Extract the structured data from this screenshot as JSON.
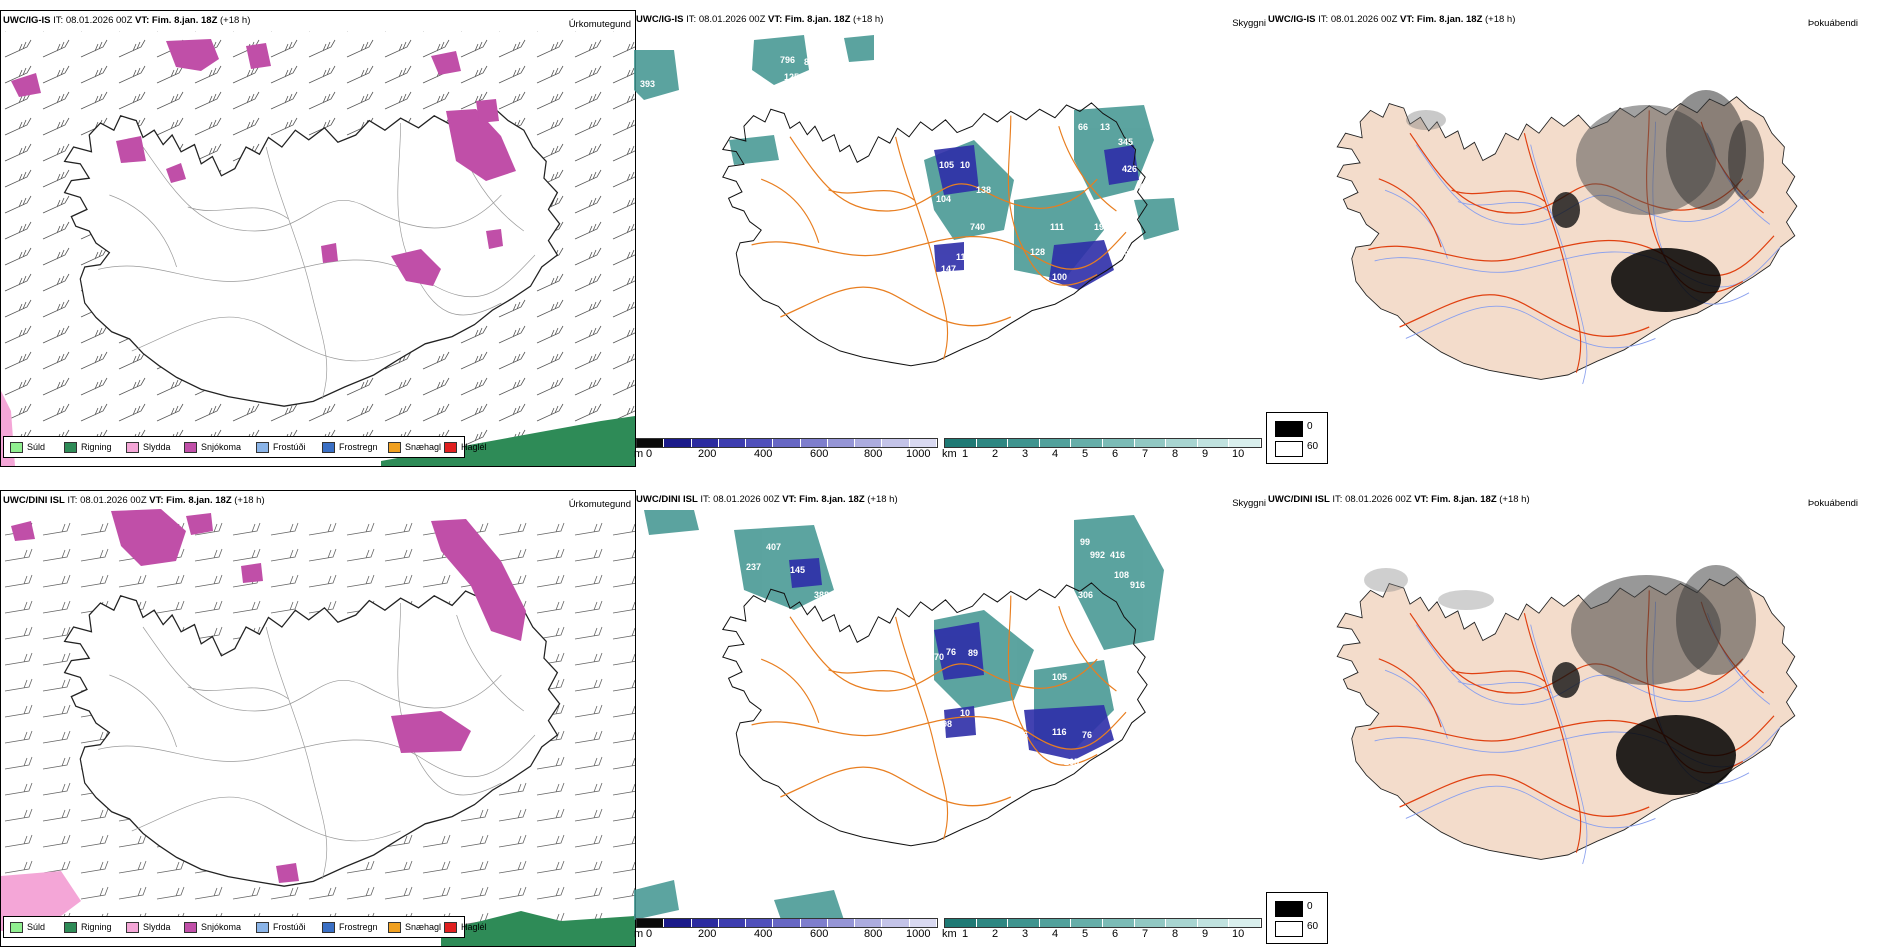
{
  "top_row": {
    "precip_type_panel": {
      "model": "UWC/IG-IS",
      "it_label": "IT:",
      "it_value": "08.01.2026 00Z",
      "vt_label": "VT:",
      "vt_value": "Fim. 8.jan. 18Z",
      "lead": "(+18 h)",
      "right_label": "Úrkomutegund"
    },
    "cloud_panel": {
      "model": "UWC/IG-IS",
      "it_label": "IT:",
      "it_value": "08.01.2026 00Z",
      "vt_label": "VT:",
      "vt_value": "Fim. 8.jan. 18Z",
      "lead": "(+18 h)",
      "right_label": "Skyggni",
      "labels": [
        "393",
        "796",
        "877",
        "125",
        "105",
        "10",
        "104",
        "138",
        "740",
        "11",
        "147",
        "148",
        "600",
        "128",
        "100",
        "176",
        "111",
        "66",
        "13",
        "345",
        "426",
        "18",
        "421",
        "190",
        "105",
        "80",
        "11"
      ]
    },
    "fog_panel": {
      "model": "UWC/IG-IS",
      "it_label": "IT:",
      "it_value": "08.01.2026 00Z",
      "vt_label": "VT:",
      "vt_value": "Fim. 8.jan. 18Z",
      "lead": "(+18 h)",
      "right_label": "Þokuábendi"
    }
  },
  "bottom_row": {
    "precip_type_panel": {
      "model": "UWC/DINI ISL",
      "it_label": "IT:",
      "it_value": "08.01.2026 00Z",
      "vt_label": "VT:",
      "vt_value": "Fim. 8.jan. 18Z",
      "lead": "(+18 h)",
      "right_label": "Úrkomutegund"
    },
    "cloud_panel": {
      "model": "UWC/DINI ISL",
      "it_label": "IT:",
      "it_value": "08.01.2026 00Z",
      "vt_label": "VT:",
      "vt_value": "Fim. 8.jan. 18Z",
      "lead": "(+18 h)",
      "right_label": "Skyggni",
      "labels": [
        "407",
        "237",
        "145",
        "388",
        "99",
        "992",
        "416",
        "108",
        "916",
        "306",
        "70",
        "76",
        "89",
        "42",
        "105",
        "98",
        "10",
        "96",
        "116",
        "76",
        "265"
      ]
    },
    "fog_panel": {
      "model": "UWC/DINI ISL",
      "it_label": "IT:",
      "it_value": "08.01.2026 00Z",
      "vt_label": "VT:",
      "vt_value": "Fim. 8.jan. 18Z",
      "lead": "(+18 h)",
      "right_label": "Þokuábendi"
    }
  },
  "precip_legend": [
    {
      "label": "Súld",
      "color": "#90ee90"
    },
    {
      "label": "Rigning",
      "color": "#2e8b57"
    },
    {
      "label": "Slydda",
      "color": "#f4a6d7"
    },
    {
      "label": "Snjókoma",
      "color": "#c04fa8"
    },
    {
      "label": "Frostúði",
      "color": "#8ab4e8"
    },
    {
      "label": "Frostregn",
      "color": "#3a6fc4"
    },
    {
      "label": "Snæhagl",
      "color": "#f0a020"
    },
    {
      "label": "Haglél",
      "color": "#e02020"
    }
  ],
  "cloud_base_bar": {
    "unit": "m",
    "ticks": [
      "0",
      "200",
      "400",
      "600",
      "800",
      "1000"
    ],
    "colors": [
      "#0a0a0a",
      "#1a1a8a",
      "#2b2ba0",
      "#3d3db0",
      "#5050bb",
      "#6767c4",
      "#7e7ecd",
      "#9595d6",
      "#acacdf",
      "#c3c3e8",
      "#d9d9f1"
    ]
  },
  "visibility_bar": {
    "unit": "km",
    "ticks": [
      "1",
      "2",
      "3",
      "4",
      "5",
      "6",
      "7",
      "8",
      "9",
      "10"
    ],
    "colors": [
      "#1f7a75",
      "#2e8782",
      "#3f948f",
      "#52a19c",
      "#66aea9",
      "#7bbbb6",
      "#91c8c3",
      "#a8d5d1",
      "#c0e2df",
      "#d9efed"
    ]
  },
  "fog_bar": {
    "ticks": [
      "0",
      "60"
    ],
    "colors": [
      "#000000",
      "#ffffff"
    ]
  },
  "colors": {
    "snow": "#c04fa8",
    "rain": "#2e8b57",
    "visibility": "#3f948f",
    "cloud_base": "#2e2ea8",
    "roads": "#e87e20",
    "land": "#f3dccb",
    "rivers": "#8aa0ee",
    "fog_roads": "#e04010"
  }
}
